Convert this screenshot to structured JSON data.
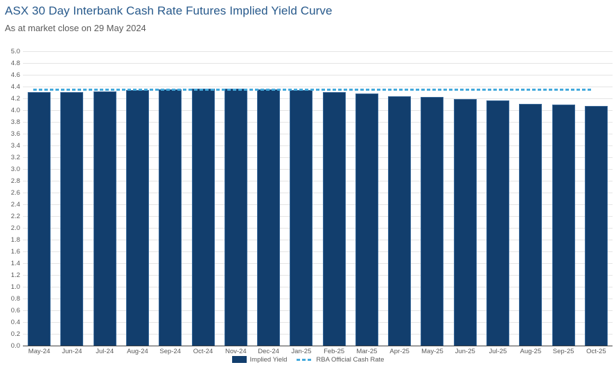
{
  "header": {
    "title": "ASX 30 Day Interbank Cash Rate Futures Implied Yield Curve",
    "subtitle": "As at market close on 29 May 2024"
  },
  "legend": {
    "implied_yield_label": "Implied Yield",
    "cash_rate_label": "RBA Official Cash Rate"
  },
  "colors": {
    "title_blue": "#27598b",
    "text_gray": "#595959",
    "bar_fill": "#123e6d",
    "bar_border": "#39699a",
    "cash_rate_cyan": "#43a9dc",
    "gridline": "#e4e4e4",
    "axis_line": "#404040",
    "background": "#ffffff"
  },
  "chart_data": {
    "type": "bar",
    "title": "ASX 30 Day Interbank Cash Rate Futures Implied Yield Curve",
    "subtitle": "As at market close on 29 May 2024",
    "categories": [
      "May-24",
      "Jun-24",
      "Jul-24",
      "Aug-24",
      "Sep-24",
      "Oct-24",
      "Nov-24",
      "Dec-24",
      "Jan-25",
      "Feb-25",
      "Mar-25",
      "Apr-25",
      "May-25",
      "Jun-25",
      "Jul-25",
      "Aug-25",
      "Sep-25",
      "Oct-25"
    ],
    "series": [
      {
        "name": "Implied Yield",
        "type": "bar",
        "values": [
          4.31,
          4.31,
          4.32,
          4.34,
          4.35,
          4.37,
          4.36,
          4.35,
          4.34,
          4.31,
          4.28,
          4.24,
          4.22,
          4.19,
          4.16,
          4.11,
          4.1,
          4.07
        ]
      },
      {
        "name": "RBA Official Cash Rate",
        "type": "line",
        "style": "dashed",
        "value": 4.35
      }
    ],
    "xlabel": "",
    "ylabel": "",
    "ylim": [
      0,
      5
    ],
    "ytick_step": 0.2,
    "ytick_labels": [
      "0.0",
      "0.2",
      "0.4",
      "0.6",
      "0.8",
      "1.0",
      "1.2",
      "1.4",
      "1.6",
      "1.8",
      "2.0",
      "2.2",
      "2.4",
      "2.6",
      "2.8",
      "3.0",
      "3.2",
      "3.4",
      "3.6",
      "3.8",
      "4.0",
      "4.2",
      "4.4",
      "4.6",
      "4.8",
      "5.0"
    ],
    "grid": true,
    "legend_position": "bottom"
  }
}
